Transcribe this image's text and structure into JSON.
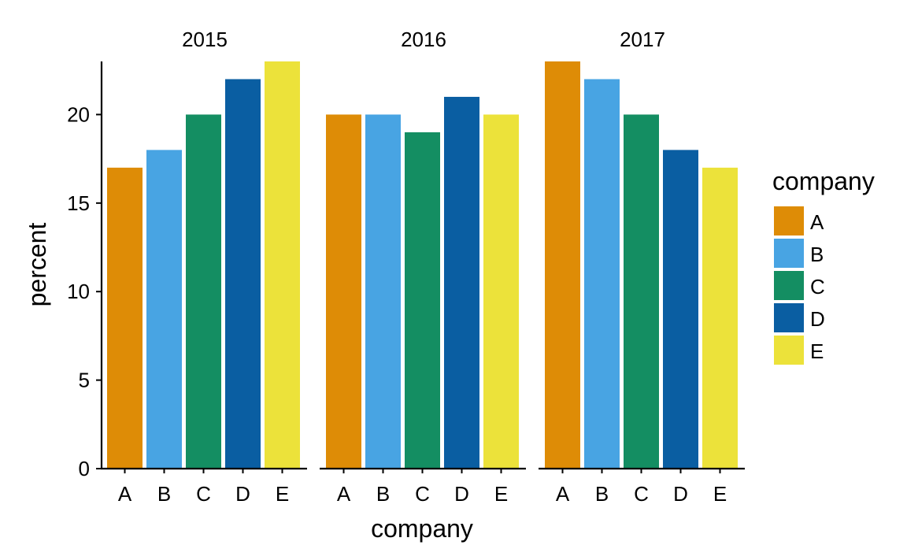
{
  "chart_data": {
    "type": "bar",
    "facets": [
      "2015",
      "2016",
      "2017"
    ],
    "categories": [
      "A",
      "B",
      "C",
      "D",
      "E"
    ],
    "values": [
      [
        17,
        18,
        20,
        22,
        23
      ],
      [
        20,
        20,
        19,
        21,
        20
      ],
      [
        23,
        22,
        20,
        18,
        17
      ]
    ],
    "colors": {
      "A": "#DE8C06",
      "B": "#48A4E3",
      "C": "#148E62",
      "D": "#0A5EA2",
      "E": "#ECE23A"
    },
    "xlabel": "company",
    "ylabel": "percent",
    "ylim": [
      0,
      23
    ],
    "yticks": [
      0,
      5,
      10,
      15,
      20
    ],
    "legend": {
      "title": "company",
      "position": "right",
      "entries": [
        "A",
        "B",
        "C",
        "D",
        "E"
      ]
    },
    "grid": false
  }
}
